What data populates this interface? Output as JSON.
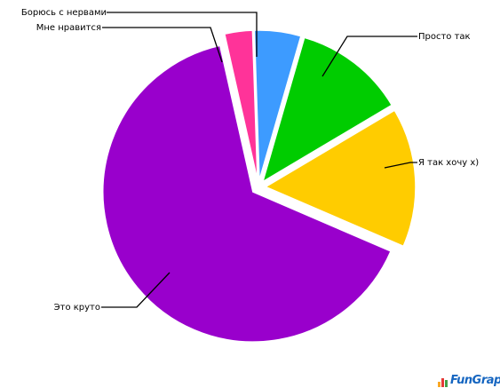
{
  "chart_data": {
    "type": "pie",
    "title": "",
    "slices": [
      {
        "label": "Борюсь с нервами",
        "value": 5,
        "color": "#3d9bff"
      },
      {
        "label": "Просто так",
        "value": 12,
        "color": "#00cc00"
      },
      {
        "label": "Я так хочу х)",
        "value": 15,
        "color": "#ffcc00"
      },
      {
        "label": "Это круто",
        "value": 65,
        "color": "#9900cc"
      },
      {
        "label": "Мне нравится",
        "value": 3,
        "color": "#ff3399"
      }
    ],
    "exploded": true,
    "legend": "none"
  },
  "branding": {
    "logo_text": "FunGraph",
    "bar_colors": [
      "#f9a825",
      "#e53935",
      "#43a047",
      "#1e88e5"
    ]
  }
}
